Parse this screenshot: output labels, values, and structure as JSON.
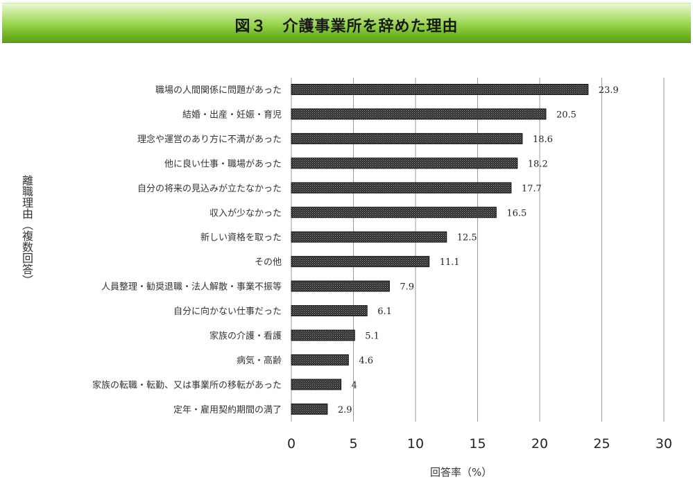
{
  "header": {
    "title": "図３　介護事業所を辞めた理由"
  },
  "chart_data": {
    "type": "bar",
    "orientation": "horizontal",
    "categories": [
      "職場の人間関係に問題があった",
      "結婚・出産・妊娠・育児",
      "理念や運営のあり方に不満があった",
      "他に良い仕事・職場があった",
      "自分の将来の見込みが立たなかった",
      "収入が少なかった",
      "新しい資格を取った",
      "その他",
      "人員整理・勧奨退職・法人解散・事業不振等",
      "自分に向かない仕事だった",
      "家族の介護・看護",
      "病気・高齢",
      "家族の転職・転勤、又は事業所の移転があった",
      "定年・雇用契約期間の満了"
    ],
    "values": [
      23.9,
      20.5,
      18.6,
      18.2,
      17.7,
      16.5,
      12.5,
      11.1,
      7.9,
      6.1,
      5.1,
      4.6,
      4,
      2.9
    ],
    "value_labels": [
      "23.9",
      "20.5",
      "18.6",
      "18.2",
      "17.7",
      "16.5",
      "12.5",
      "11.1",
      "7.9",
      "6.1",
      "5.1",
      "4.6",
      "4",
      "2.9"
    ],
    "xlabel": "回答率（%）",
    "ylabel": "離職理由（複数回答）",
    "xlim": [
      0,
      30
    ],
    "xticks": [
      "0",
      "5",
      "10",
      "15",
      "20",
      "25",
      "30"
    ],
    "grid": "vertical",
    "bar_color": "#3a3a3a",
    "grid_color": "#9a9a9a"
  }
}
